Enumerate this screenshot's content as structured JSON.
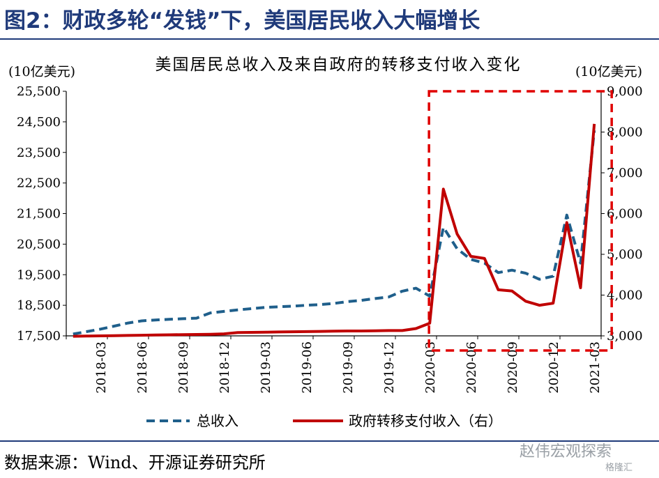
{
  "figure": {
    "title": "图2：财政多轮“发钱”下，美国居民收入大幅增长",
    "source": "数据来源：Wind、开源证券研究所",
    "watermark": "赵伟宏观探索",
    "watermark_sub": "格隆汇"
  },
  "chart_data": {
    "type": "line",
    "title": "美国居民总收入及来自政府的转移支付收入变化",
    "ylabel_left": "(10亿美元)",
    "ylabel_right": "(10亿美元)",
    "ylim_left": [
      17500,
      25500
    ],
    "ylim_right": [
      3000,
      9000
    ],
    "yticks_left": [
      "25,500",
      "24,500",
      "23,500",
      "22,500",
      "21,500",
      "20,500",
      "19,500",
      "18,500",
      "17,500"
    ],
    "yticks_right": [
      "9,000",
      "8,000",
      "7,000",
      "6,000",
      "5,000",
      "4,000",
      "3,000"
    ],
    "x": [
      "2018-01",
      "2018-02",
      "2018-03",
      "2018-04",
      "2018-05",
      "2018-06",
      "2018-07",
      "2018-08",
      "2018-09",
      "2018-10",
      "2018-11",
      "2018-12",
      "2019-01",
      "2019-02",
      "2019-03",
      "2019-04",
      "2019-05",
      "2019-06",
      "2019-07",
      "2019-08",
      "2019-09",
      "2019-10",
      "2019-11",
      "2019-12",
      "2020-01",
      "2020-02",
      "2020-03",
      "2020-04",
      "2020-05",
      "2020-06",
      "2020-07",
      "2020-08",
      "2020-09",
      "2020-10",
      "2020-11",
      "2020-12",
      "2021-01",
      "2021-02",
      "2021-03"
    ],
    "xtick_labels": [
      "2018-03",
      "2018-06",
      "2018-09",
      "2018-12",
      "2019-03",
      "2019-06",
      "2019-09",
      "2019-12",
      "2020-03",
      "2020-06",
      "2020-09",
      "2020-12",
      "2021-03"
    ],
    "xtick_indices": [
      2,
      5,
      8,
      11,
      14,
      17,
      20,
      23,
      26,
      29,
      32,
      35,
      38
    ],
    "series": [
      {
        "name": "总收入",
        "axis": "left",
        "color": "#1f5f8b",
        "dash": true,
        "values": [
          17560,
          17640,
          17720,
          17820,
          17920,
          17990,
          18020,
          18040,
          18060,
          18080,
          18250,
          18300,
          18350,
          18390,
          18430,
          18450,
          18470,
          18500,
          18520,
          18560,
          18620,
          18660,
          18720,
          18770,
          18960,
          19060,
          18800,
          21050,
          20350,
          20000,
          19880,
          19570,
          19650,
          19550,
          19350,
          19450,
          21450,
          19880,
          24220
        ]
      },
      {
        "name": "政府转移支付收入（右）",
        "axis": "right",
        "color": "#c00000",
        "dash": false,
        "values": [
          2990,
          2995,
          3000,
          3005,
          3010,
          3015,
          3020,
          3025,
          3030,
          3035,
          3040,
          3050,
          3080,
          3085,
          3090,
          3095,
          3100,
          3105,
          3110,
          3115,
          3120,
          3120,
          3125,
          3130,
          3130,
          3180,
          3310,
          6600,
          5500,
          4950,
          4900,
          4130,
          4100,
          3850,
          3750,
          3800,
          5780,
          4180,
          8200
        ]
      }
    ],
    "highlight_range": [
      "2020-03",
      "2021-03"
    ],
    "legend_position": "bottom"
  }
}
